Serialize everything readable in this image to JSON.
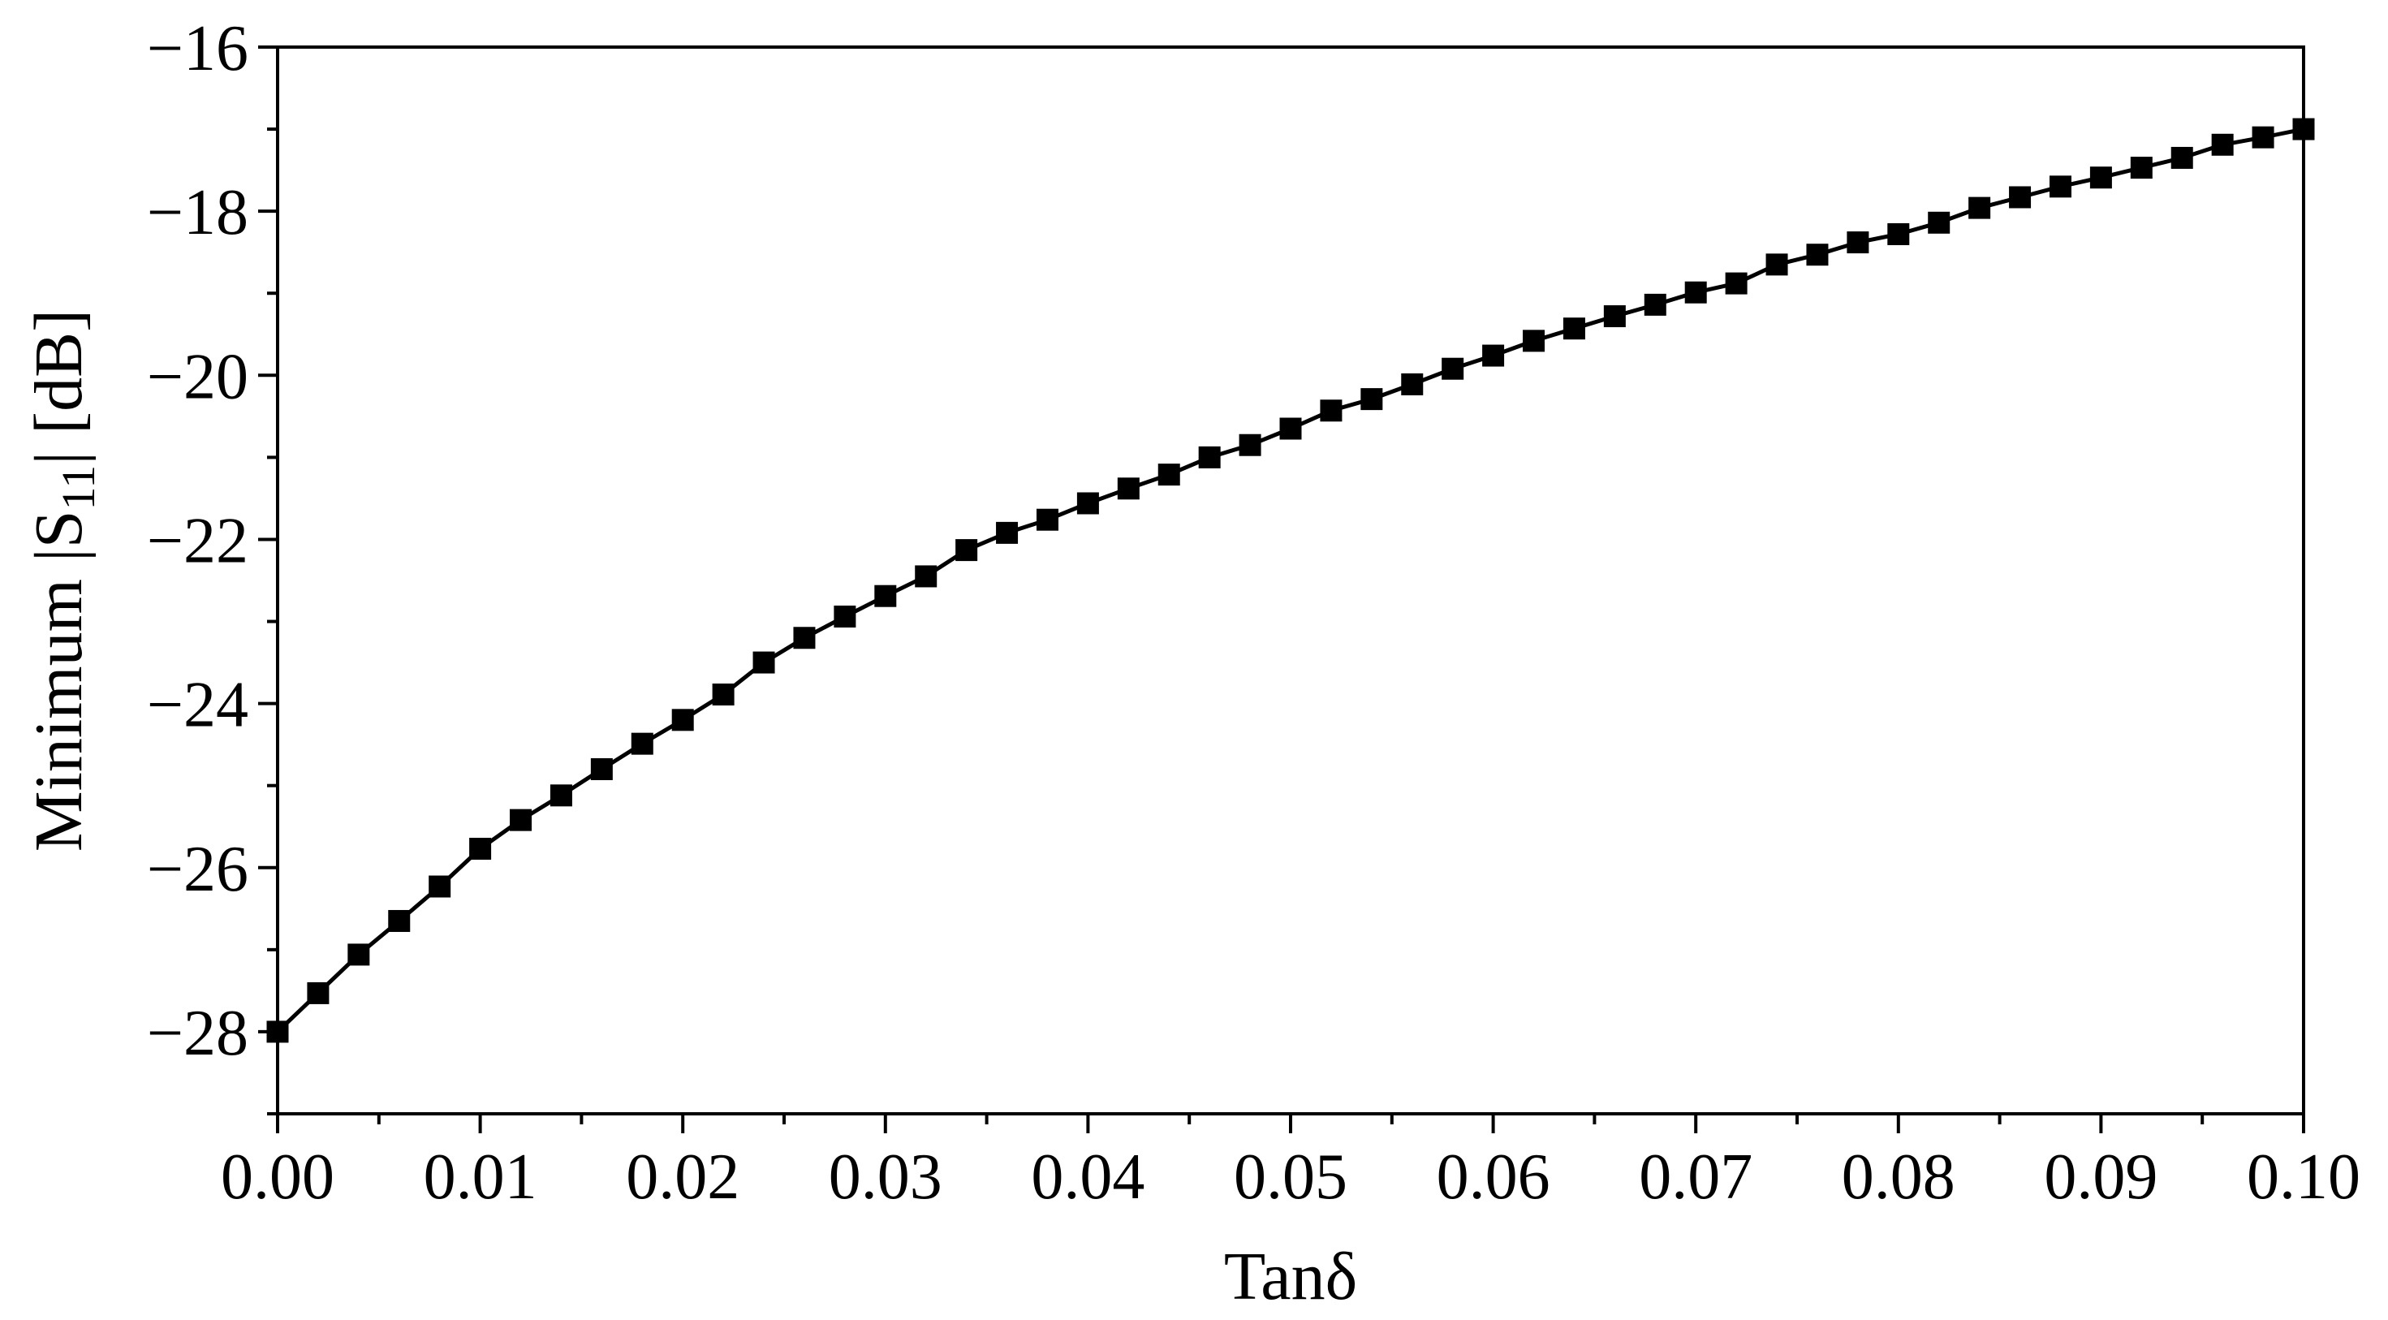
{
  "chart_data": {
    "type": "line",
    "xlabel": "Tanδ",
    "ylabel_parts": {
      "prefix": "Minimum |S",
      "subscript": "11",
      "suffix": "|  [dB]"
    },
    "xlim": [
      0.0,
      0.1
    ],
    "ylim": [
      -29,
      -16
    ],
    "xticks": [
      0.0,
      0.01,
      0.02,
      0.03,
      0.04,
      0.05,
      0.06,
      0.07,
      0.08,
      0.09,
      0.1
    ],
    "xtick_labels": [
      "0.00",
      "0.01",
      "0.02",
      "0.03",
      "0.04",
      "0.05",
      "0.06",
      "0.07",
      "0.08",
      "0.09",
      "0.10"
    ],
    "yticks": [
      -28,
      -26,
      -24,
      -22,
      -20,
      -18,
      -16
    ],
    "ytick_labels": [
      "−28",
      "−26",
      "−24",
      "−22",
      "−20",
      "−18",
      "−16"
    ],
    "grid": false,
    "marker": "square",
    "line_color": "#000000",
    "series": [
      {
        "x": [
          0.0,
          0.002,
          0.004,
          0.006,
          0.008,
          0.01,
          0.012,
          0.014,
          0.016,
          0.018,
          0.02,
          0.022,
          0.024,
          0.026,
          0.028,
          0.03,
          0.032,
          0.034,
          0.036,
          0.038,
          0.04,
          0.042,
          0.044,
          0.046,
          0.048,
          0.05,
          0.052,
          0.054,
          0.056,
          0.058,
          0.06,
          0.062,
          0.064,
          0.066,
          0.068,
          0.07,
          0.072,
          0.074,
          0.076,
          0.078,
          0.08,
          0.082,
          0.084,
          0.086,
          0.088,
          0.09,
          0.092,
          0.094,
          0.096,
          0.098,
          0.1
        ],
        "y": [
          -28.0,
          -27.53,
          -27.06,
          -26.65,
          -26.23,
          -25.77,
          -25.42,
          -25.12,
          -24.8,
          -24.49,
          -24.2,
          -23.89,
          -23.5,
          -23.2,
          -22.94,
          -22.69,
          -22.45,
          -22.13,
          -21.92,
          -21.76,
          -21.56,
          -21.38,
          -21.21,
          -21.0,
          -20.85,
          -20.65,
          -20.43,
          -20.29,
          -20.11,
          -19.92,
          -19.76,
          -19.58,
          -19.43,
          -19.28,
          -19.14,
          -18.99,
          -18.88,
          -18.65,
          -18.53,
          -18.38,
          -18.28,
          -18.14,
          -17.96,
          -17.83,
          -17.7,
          -17.59,
          -17.47,
          -17.35,
          -17.19,
          -17.1,
          -17.0
        ]
      }
    ]
  }
}
